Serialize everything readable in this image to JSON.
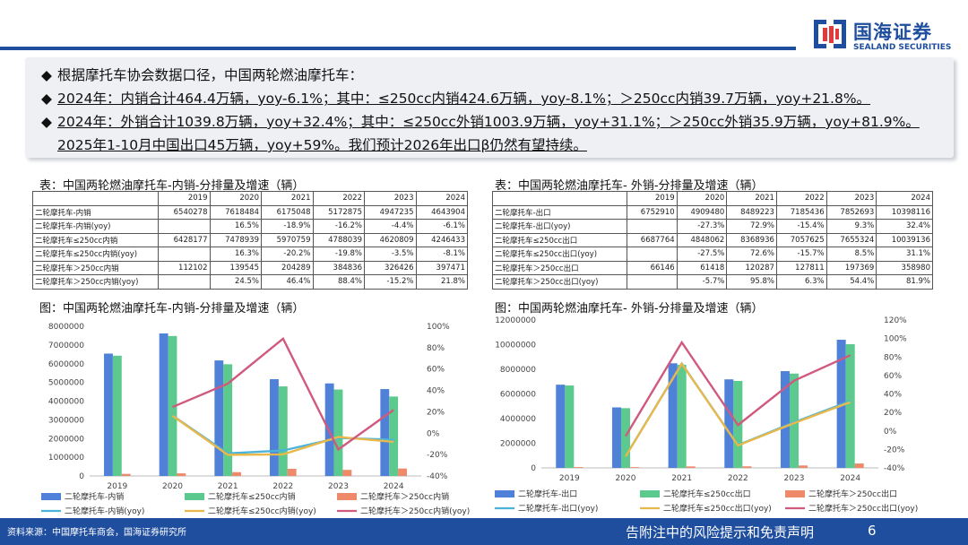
{
  "brand": {
    "name_cn": "国海证券",
    "name_en": "SEALAND SECURITIES"
  },
  "summary": {
    "line1": "根据摩托车协会数据口径，中国两轮燃油摩托车：",
    "line2": "2024年：内销合计464.4万辆，yoy-6.1%；其中：≤250cc内销424.6万辆，yoy-8.1%；＞250cc内销39.7万辆，yoy+21.8%。",
    "line3": "2024年：外销合计1039.8万辆，yoy+32.4%；其中：≤250cc外销1003.9万辆，yoy+31.1%；＞250cc外销35.9万辆，yoy+81.9%。",
    "line4": "2025年1-10月中国出口45万辆，yoy+59%。我们预计2026年出口β仍然有望持续。"
  },
  "table_domestic": {
    "title": "表：中国两轮燃油摩托车-内销-分排量及增速（辆）",
    "years": [
      "2019",
      "2020",
      "2021",
      "2022",
      "2023",
      "2024"
    ],
    "rows": [
      {
        "label": "二轮摩托车-内销",
        "cells": [
          "6540278",
          "7618484",
          "6175048",
          "5172875",
          "4947235",
          "4643904"
        ]
      },
      {
        "label": "二轮摩托车-内销(yoy)",
        "cells": [
          "",
          "16.5%",
          "-18.9%",
          "-16.2%",
          "-4.4%",
          "-6.1%"
        ]
      },
      {
        "label": "二轮摩托车≤250cc内销",
        "cells": [
          "6428177",
          "7478939",
          "5970759",
          "4788039",
          "4620809",
          "4246433"
        ]
      },
      {
        "label": "二轮摩托车≤250cc内销(yoy)",
        "cells": [
          "",
          "16.3%",
          "-20.2%",
          "-19.8%",
          "-3.5%",
          "-8.1%"
        ]
      },
      {
        "label": "二轮摩托车＞250cc内销",
        "cells": [
          "112102",
          "139545",
          "204289",
          "384836",
          "326426",
          "397471"
        ]
      },
      {
        "label": "二轮摩托车＞250cc内销(yoy)",
        "cells": [
          "",
          "24.5%",
          "46.4%",
          "88.4%",
          "-15.2%",
          "21.8%"
        ]
      }
    ]
  },
  "table_export": {
    "title": "表：中国两轮燃油摩托车- 外销-分排量及增速（辆）",
    "years": [
      "2019",
      "2020",
      "2021",
      "2022",
      "2023",
      "2024"
    ],
    "rows": [
      {
        "label": "二轮摩托车-出口",
        "cells": [
          "6752910",
          "4909480",
          "8489223",
          "7185436",
          "7852693",
          "10398116"
        ]
      },
      {
        "label": "二轮摩托车-出口(yoy)",
        "cells": [
          "",
          "-27.3%",
          "72.9%",
          "-15.4%",
          "9.3%",
          "32.4%"
        ]
      },
      {
        "label": "二轮摩托车≤250cc出口",
        "cells": [
          "6687764",
          "4848062",
          "8368936",
          "7057625",
          "7655324",
          "10039136"
        ]
      },
      {
        "label": "二轮摩托车≤250cc出口(yoy)",
        "cells": [
          "",
          "-27.5%",
          "72.6%",
          "-15.7%",
          "8.5%",
          "31.1%"
        ]
      },
      {
        "label": "二轮摩托车＞250cc出口",
        "cells": [
          "66146",
          "61418",
          "120287",
          "127811",
          "197369",
          "358980"
        ]
      },
      {
        "label": "二轮摩托车＞250cc出口(yoy)",
        "cells": [
          "",
          "-5.7%",
          "95.8%",
          "6.3%",
          "54.4%",
          "81.9%"
        ]
      }
    ]
  },
  "chart_data": [
    {
      "type": "bar",
      "title": "图：中国两轮燃油摩托车-内销-分排量及增速（辆）",
      "categories": [
        "2019",
        "2020",
        "2021",
        "2022",
        "2023",
        "2024"
      ],
      "ylim": [
        0,
        8000000
      ],
      "yticks": [
        "0",
        "1000000",
        "2000000",
        "3000000",
        "4000000",
        "5000000",
        "6000000",
        "7000000",
        "8000000"
      ],
      "y2lim": [
        -40,
        100
      ],
      "y2ticks": [
        "-40%",
        "-20%",
        "0%",
        "20%",
        "40%",
        "60%",
        "80%",
        "100%"
      ],
      "bar_series": [
        {
          "name": "二轮摩托车-内销",
          "color": "#4f81d8",
          "values": [
            6540278,
            7618484,
            6175048,
            5172875,
            4947235,
            4643904
          ]
        },
        {
          "name": "二轮摩托车≤250cc内销",
          "color": "#5cc98e",
          "values": [
            6428177,
            7478939,
            5970759,
            4788039,
            4620809,
            4246433
          ]
        },
        {
          "name": "二轮摩托车＞250cc内销",
          "color": "#ee8a6a",
          "values": [
            112102,
            139545,
            204289,
            384836,
            326426,
            397471
          ]
        }
      ],
      "line_series": [
        {
          "name": "二轮摩托车-内销(yoy)",
          "color": "#4bb3d9",
          "values": [
            null,
            16.5,
            -18.9,
            -16.2,
            -4.4,
            -6.1
          ]
        },
        {
          "name": "二轮摩托车≤250cc内销(yoy)",
          "color": "#e8b94a",
          "values": [
            null,
            16.3,
            -20.2,
            -19.8,
            -3.5,
            -8.1
          ]
        },
        {
          "name": "二轮摩托车＞250cc内销(yoy)",
          "color": "#d05a7e",
          "values": [
            null,
            24.5,
            46.4,
            88.4,
            -15.2,
            21.8
          ]
        }
      ]
    },
    {
      "type": "bar",
      "title": "图：中国两轮燃油摩托车- 外销-分排量及增速（辆）",
      "categories": [
        "2019",
        "2020",
        "2021",
        "2022",
        "2023",
        "2024"
      ],
      "ylim": [
        0,
        12000000
      ],
      "yticks": [
        "0",
        "2000000",
        "4000000",
        "6000000",
        "8000000",
        "10000000",
        "12000000"
      ],
      "y2lim": [
        -40,
        120
      ],
      "y2ticks": [
        "-40%",
        "-20%",
        "0%",
        "20%",
        "40%",
        "60%",
        "80%",
        "100%",
        "120%"
      ],
      "bar_series": [
        {
          "name": "二轮摩托车-出口",
          "color": "#4f81d8",
          "values": [
            6752910,
            4909480,
            8489223,
            7185436,
            7852693,
            10398116
          ]
        },
        {
          "name": "二轮摩托车≤250cc出口",
          "color": "#5cc98e",
          "values": [
            6687764,
            4848062,
            8368936,
            7057625,
            7655324,
            10039136
          ]
        },
        {
          "name": "二轮摩托车＞250cc出口",
          "color": "#ee8a6a",
          "values": [
            66146,
            61418,
            120287,
            127811,
            197369,
            358980
          ]
        }
      ],
      "line_series": [
        {
          "name": "二轮摩托车-出口(yoy)",
          "color": "#4bb3d9",
          "values": [
            null,
            -27.3,
            72.9,
            -15.4,
            9.3,
            32.4
          ]
        },
        {
          "name": "二轮摩托车≤250cc出口(yoy)",
          "color": "#e8b94a",
          "values": [
            null,
            -27.5,
            72.6,
            -15.7,
            8.5,
            31.1
          ]
        },
        {
          "name": "二轮摩托车＞250cc出口(yoy)",
          "color": "#d05a7e",
          "values": [
            null,
            -5.7,
            95.8,
            6.3,
            54.4,
            81.9
          ]
        }
      ]
    }
  ],
  "footer": {
    "source": "资料来源：中国摩托车商会，国海证券研究所",
    "disclaimer": "告附注中的风险提示和免责声明",
    "page": "6"
  }
}
